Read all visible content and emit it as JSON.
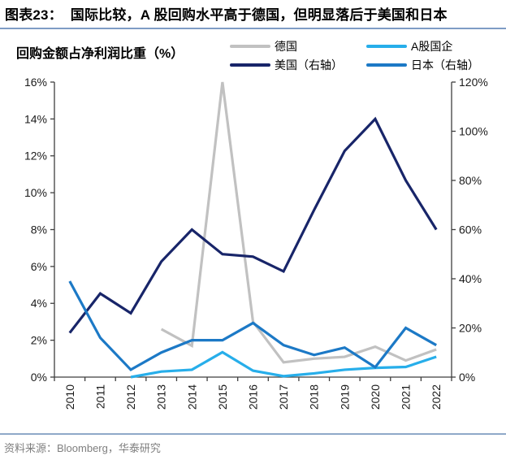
{
  "header": {
    "title": "图表23：  国际比较，A 股回购水平高于德国，但明显落后于美国和日本"
  },
  "chart": {
    "title": "回购金额占净利润比重（%）",
    "legend": [
      {
        "id": "germany",
        "label": "德国",
        "color": "#c1c1c1"
      },
      {
        "id": "a-share-soe",
        "label": "A股国企",
        "color": "#27aeea"
      },
      {
        "id": "us",
        "label": "美国（右轴）",
        "color": "#182569"
      },
      {
        "id": "japan",
        "label": "日本（右轴）",
        "color": "#1c79c6"
      }
    ]
  },
  "chart_data": {
    "type": "line",
    "title": "回购金额占净利润比重（%）",
    "x_ticks": [
      "2010",
      "2011",
      "2012",
      "2013",
      "2014",
      "2015",
      "2016",
      "2017",
      "2018",
      "2019",
      "2020",
      "2021",
      "2022"
    ],
    "grid": false,
    "legend_position": "top-right",
    "left_axis": {
      "min": 0,
      "max": 16,
      "step": 2,
      "ticks": [
        "0%",
        "2%",
        "4%",
        "6%",
        "8%",
        "10%",
        "12%",
        "14%",
        "16%"
      ]
    },
    "right_axis": {
      "min": 0,
      "max": 120,
      "step": 20,
      "ticks": [
        "0%",
        "20%",
        "40%",
        "60%",
        "80%",
        "100%",
        "120%"
      ]
    },
    "series": [
      {
        "id": "germany",
        "name": "德国",
        "axis": "left",
        "color": "#c1c1c1",
        "values": [
          null,
          null,
          null,
          2.6,
          1.7,
          16.0,
          3.0,
          0.8,
          1.0,
          1.1,
          1.65,
          0.9,
          1.5
        ]
      },
      {
        "id": "a-share-soe",
        "name": "A股国企",
        "axis": "left",
        "color": "#27aeea",
        "values": [
          null,
          null,
          0.0,
          0.3,
          0.4,
          1.35,
          0.35,
          0.05,
          0.2,
          0.4,
          0.5,
          0.55,
          1.1
        ]
      },
      {
        "id": "us",
        "name": "美国（右轴）",
        "axis": "right",
        "color": "#182569",
        "values": [
          18,
          34,
          26,
          47,
          60,
          50,
          49,
          43,
          68,
          92,
          105,
          80,
          60
        ]
      },
      {
        "id": "japan",
        "name": "日本（右轴）",
        "axis": "right",
        "color": "#1c79c6",
        "values": [
          39,
          16,
          3,
          10,
          15,
          15,
          22,
          13,
          9,
          12,
          4,
          20,
          13
        ]
      }
    ]
  },
  "footer": {
    "source": "资料来源：Bloomberg，华泰研究"
  }
}
